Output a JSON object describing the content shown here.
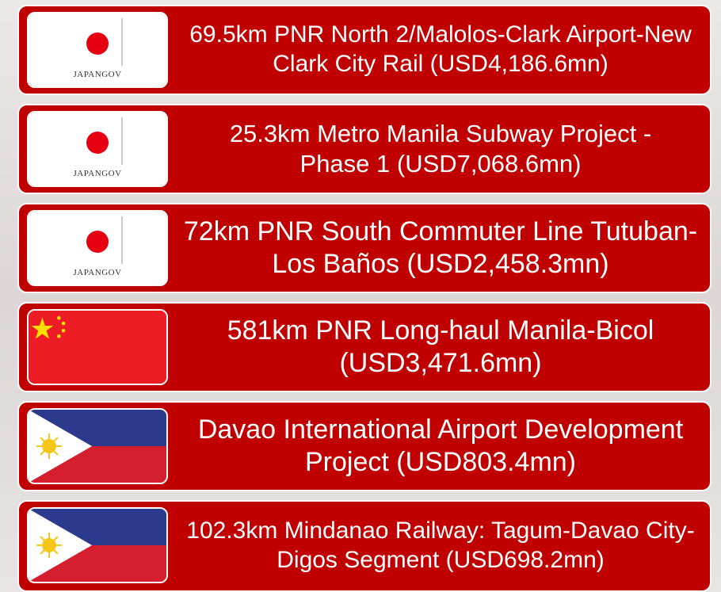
{
  "logo_text": "JAPANGOV",
  "projects": [
    {
      "label": "69.5km PNR North 2/Malolos-Clark Airport-New Clark City Rail (USD4,186.6mn)"
    },
    {
      "label": "25.3km Metro Manila Subway Project - Phase 1 (USD7,068.6mn)"
    },
    {
      "label": "72km PNR South Commuter Line Tutuban-Los Baños (USD2,458.3mn)"
    },
    {
      "label": "581km PNR Long-haul Manila-Bicol (USD3,471.6mn)"
    },
    {
      "label": "Davao International Airport Development Project (USD803.4mn)"
    },
    {
      "label": "102.3km Mindanao Railway: Tagum-Davao City-Digos Segment (USD698.2mn)"
    }
  ]
}
